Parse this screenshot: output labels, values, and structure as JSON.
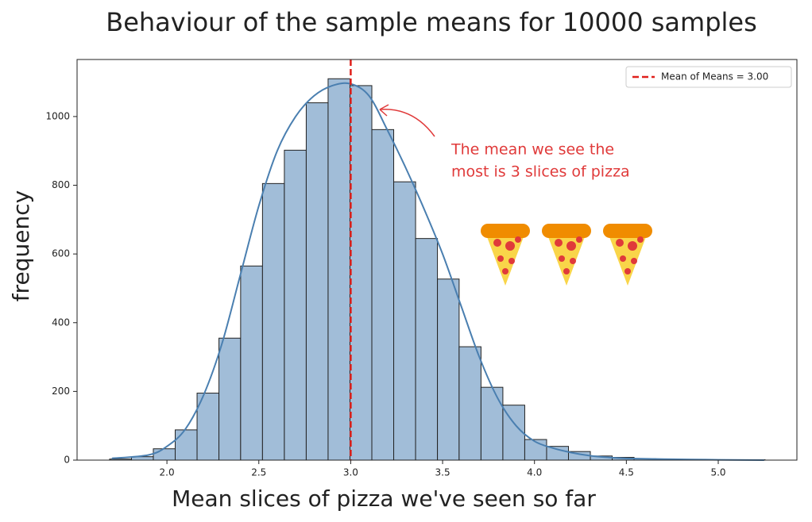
{
  "chart_data": {
    "type": "histogram",
    "title": "Behaviour of the sample means for 10000 samples",
    "xlabel": "Mean slices of pizza we've seen so far",
    "ylabel": "frequency",
    "bins": [
      1.688,
      1.807,
      1.926,
      2.045,
      2.164,
      2.283,
      2.401,
      2.52,
      2.639,
      2.758,
      2.877,
      2.996,
      3.115,
      3.234,
      3.353,
      3.472,
      3.59,
      3.709,
      3.828,
      3.947,
      4.066,
      4.185,
      4.304,
      4.423,
      4.542,
      4.661,
      4.779,
      4.898,
      5.017,
      5.136,
      5.255
    ],
    "counts": [
      3,
      10,
      33,
      88,
      195,
      355,
      565,
      805,
      902,
      1040,
      1110,
      1090,
      962,
      810,
      645,
      527,
      330,
      212,
      160,
      60,
      40,
      25,
      12,
      8,
      4,
      2,
      1,
      1,
      0,
      1
    ],
    "color": "#a1bdd8",
    "kde": {
      "color": "#4a7fb0",
      "x": [
        1.7,
        1.9,
        2.0,
        2.1,
        2.2,
        2.3,
        2.4,
        2.5,
        2.6,
        2.7,
        2.8,
        2.9,
        3.0,
        3.1,
        3.2,
        3.3,
        3.4,
        3.5,
        3.6,
        3.7,
        3.8,
        3.9,
        4.0,
        4.1,
        4.2,
        4.3,
        4.4,
        4.5,
        4.7,
        5.0,
        5.25
      ],
      "values": [
        5,
        15,
        40,
        90,
        190,
        340,
        540,
        740,
        900,
        1000,
        1060,
        1090,
        1095,
        1060,
        960,
        850,
        730,
        600,
        450,
        300,
        180,
        100,
        55,
        35,
        22,
        13,
        8,
        5,
        3,
        1,
        0
      ]
    },
    "mean_line": {
      "value": 3.0,
      "label": "Mean of Means = 3.00",
      "color": "#e0201b"
    },
    "annotation": {
      "lines": [
        "The mean we see the",
        "most is 3 slices of pizza"
      ],
      "color": "#e03a3a"
    },
    "xlim": [
      1.511,
      5.428
    ],
    "ylim": [
      0,
      1166
    ],
    "xticks": [
      {
        "value": 2,
        "label": "2.0"
      },
      {
        "value": 2.5,
        "label": "2.5"
      },
      {
        "value": 3,
        "label": "3.0"
      },
      {
        "value": 3.5,
        "label": "3.5"
      },
      {
        "value": 4,
        "label": "4.0"
      },
      {
        "value": 4.5,
        "label": "4.5"
      },
      {
        "value": 5,
        "label": "5.0"
      }
    ],
    "yticks": [
      0,
      200,
      400,
      600,
      800,
      1000
    ],
    "legend": "upper right"
  }
}
